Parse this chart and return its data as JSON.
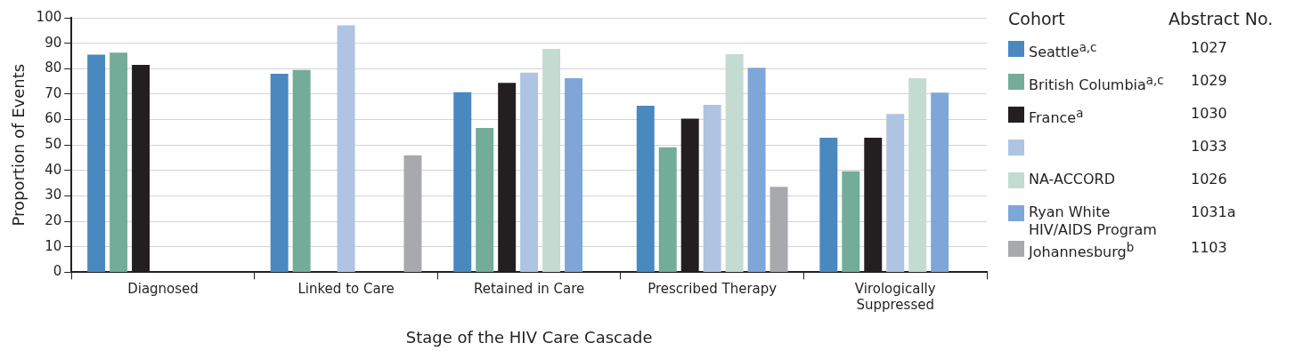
{
  "chart_data": {
    "type": "bar",
    "xlabel": "Stage of the HIV Care Cascade",
    "ylabel": "Proportion of Events",
    "legend_title": "Cohort",
    "categories": [
      "Diagnosed",
      "Linked to Care",
      "Retained in Care",
      "Prescribed Therapy",
      "Virologically Suppressed"
    ],
    "series": [
      {
        "name": "Seattle$^{a,c}$",
        "color": "#4a88c0",
        "values": [
          85.5,
          78,
          70.8,
          65.4,
          52.9
        ]
      },
      {
        "name": "British Columbia$^{a,c}$",
        "color": "#73ac98",
        "values": [
          86.3,
          79.5,
          56.7,
          49.1,
          39.7
        ]
      },
      {
        "name": "France$^{a}$",
        "color": "#231f20",
        "values": [
          81.5,
          null,
          74.4,
          60.4,
          52.9
        ]
      },
      {
        "color": "#afc4e3",
        "values": [
          null,
          97,
          78.4,
          65.8,
          62.2
        ]
      },
      {
        "name": "NA-ACCORD",
        "color": "#c3dbd0",
        "values": [
          null,
          null,
          87.8,
          85.7,
          76.3
        ]
      },
      {
        "name": "Ryan White HIV/AIDS Program",
        "color": "#7fa6d8",
        "values": [
          null,
          null,
          76.3,
          80.4,
          70.6
        ]
      },
      {
        "name": "Johannesburg$^{b}$",
        "color": "#a7a9ac",
        "values": [
          null,
          46,
          null,
          33.6,
          null
        ]
      }
    ],
    "ylim": [
      0,
      100
    ],
    "yticks": [
      0,
      10,
      20,
      30,
      40,
      50,
      60,
      70,
      80,
      90,
      100
    ],
    "grid": "y",
    "legend": "right",
    "annotations": [
      "Abstract No.",
      "1027",
      "1029",
      "1030",
      "1033",
      "1026",
      "1031a",
      "1103"
    ]
  }
}
